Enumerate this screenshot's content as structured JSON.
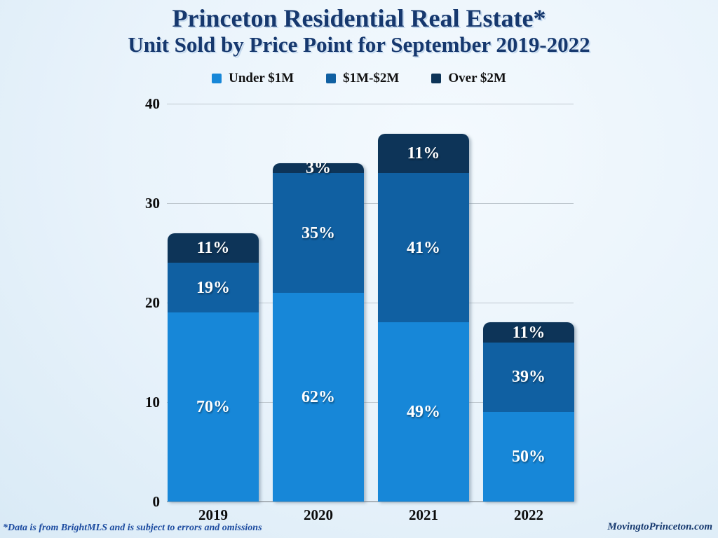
{
  "page": {
    "title": "Princeton Residential Real Estate*",
    "subtitle": "Unit Sold by Price Point for September 2019-2022",
    "footnote": "*Data is from BrightMLS and is subject to errors and omissions",
    "website": "MovingtoPrinceton.com"
  },
  "colors": {
    "under_1m": "#1787d8",
    "m1_m2": "#1060a2",
    "over_2m": "#0d3458",
    "title_text": "#16386e",
    "legend_text": "#111111",
    "axis_text": "#0b0b0b",
    "bar_label_text": "#ffffff",
    "gridline": "#bfc8cf",
    "baseline": "#a9b2b9",
    "footnote_text": "#1c4ba0",
    "website_text": "#16396f"
  },
  "chart_data": {
    "type": "bar",
    "stacked": true,
    "title": "Princeton Residential Real Estate*",
    "subtitle": "Unit Sold by Price Point for September 2019-2022",
    "categories": [
      "2019",
      "2020",
      "2021",
      "2022"
    ],
    "series": [
      {
        "name": "Under $1M",
        "color_key": "under_1m",
        "values": [
          19,
          21,
          18,
          9
        ],
        "labels": [
          "70%",
          "62%",
          "49%",
          "50%"
        ]
      },
      {
        "name": "$1M-$2M",
        "color_key": "m1_m2",
        "values": [
          5,
          12,
          15,
          7
        ],
        "labels": [
          "19%",
          "35%",
          "41%",
          "39%"
        ]
      },
      {
        "name": "Over $2M",
        "color_key": "over_2m",
        "values": [
          3,
          1,
          4,
          2
        ],
        "labels": [
          "11%",
          "3%",
          "11%",
          "11%"
        ]
      }
    ],
    "totals": [
      27,
      34,
      37,
      18
    ],
    "y_ticks": [
      0,
      10,
      20,
      30,
      40
    ],
    "ylim": [
      0,
      40
    ],
    "xlabel": "",
    "ylabel": "",
    "grid": true,
    "legend_position": "top"
  }
}
